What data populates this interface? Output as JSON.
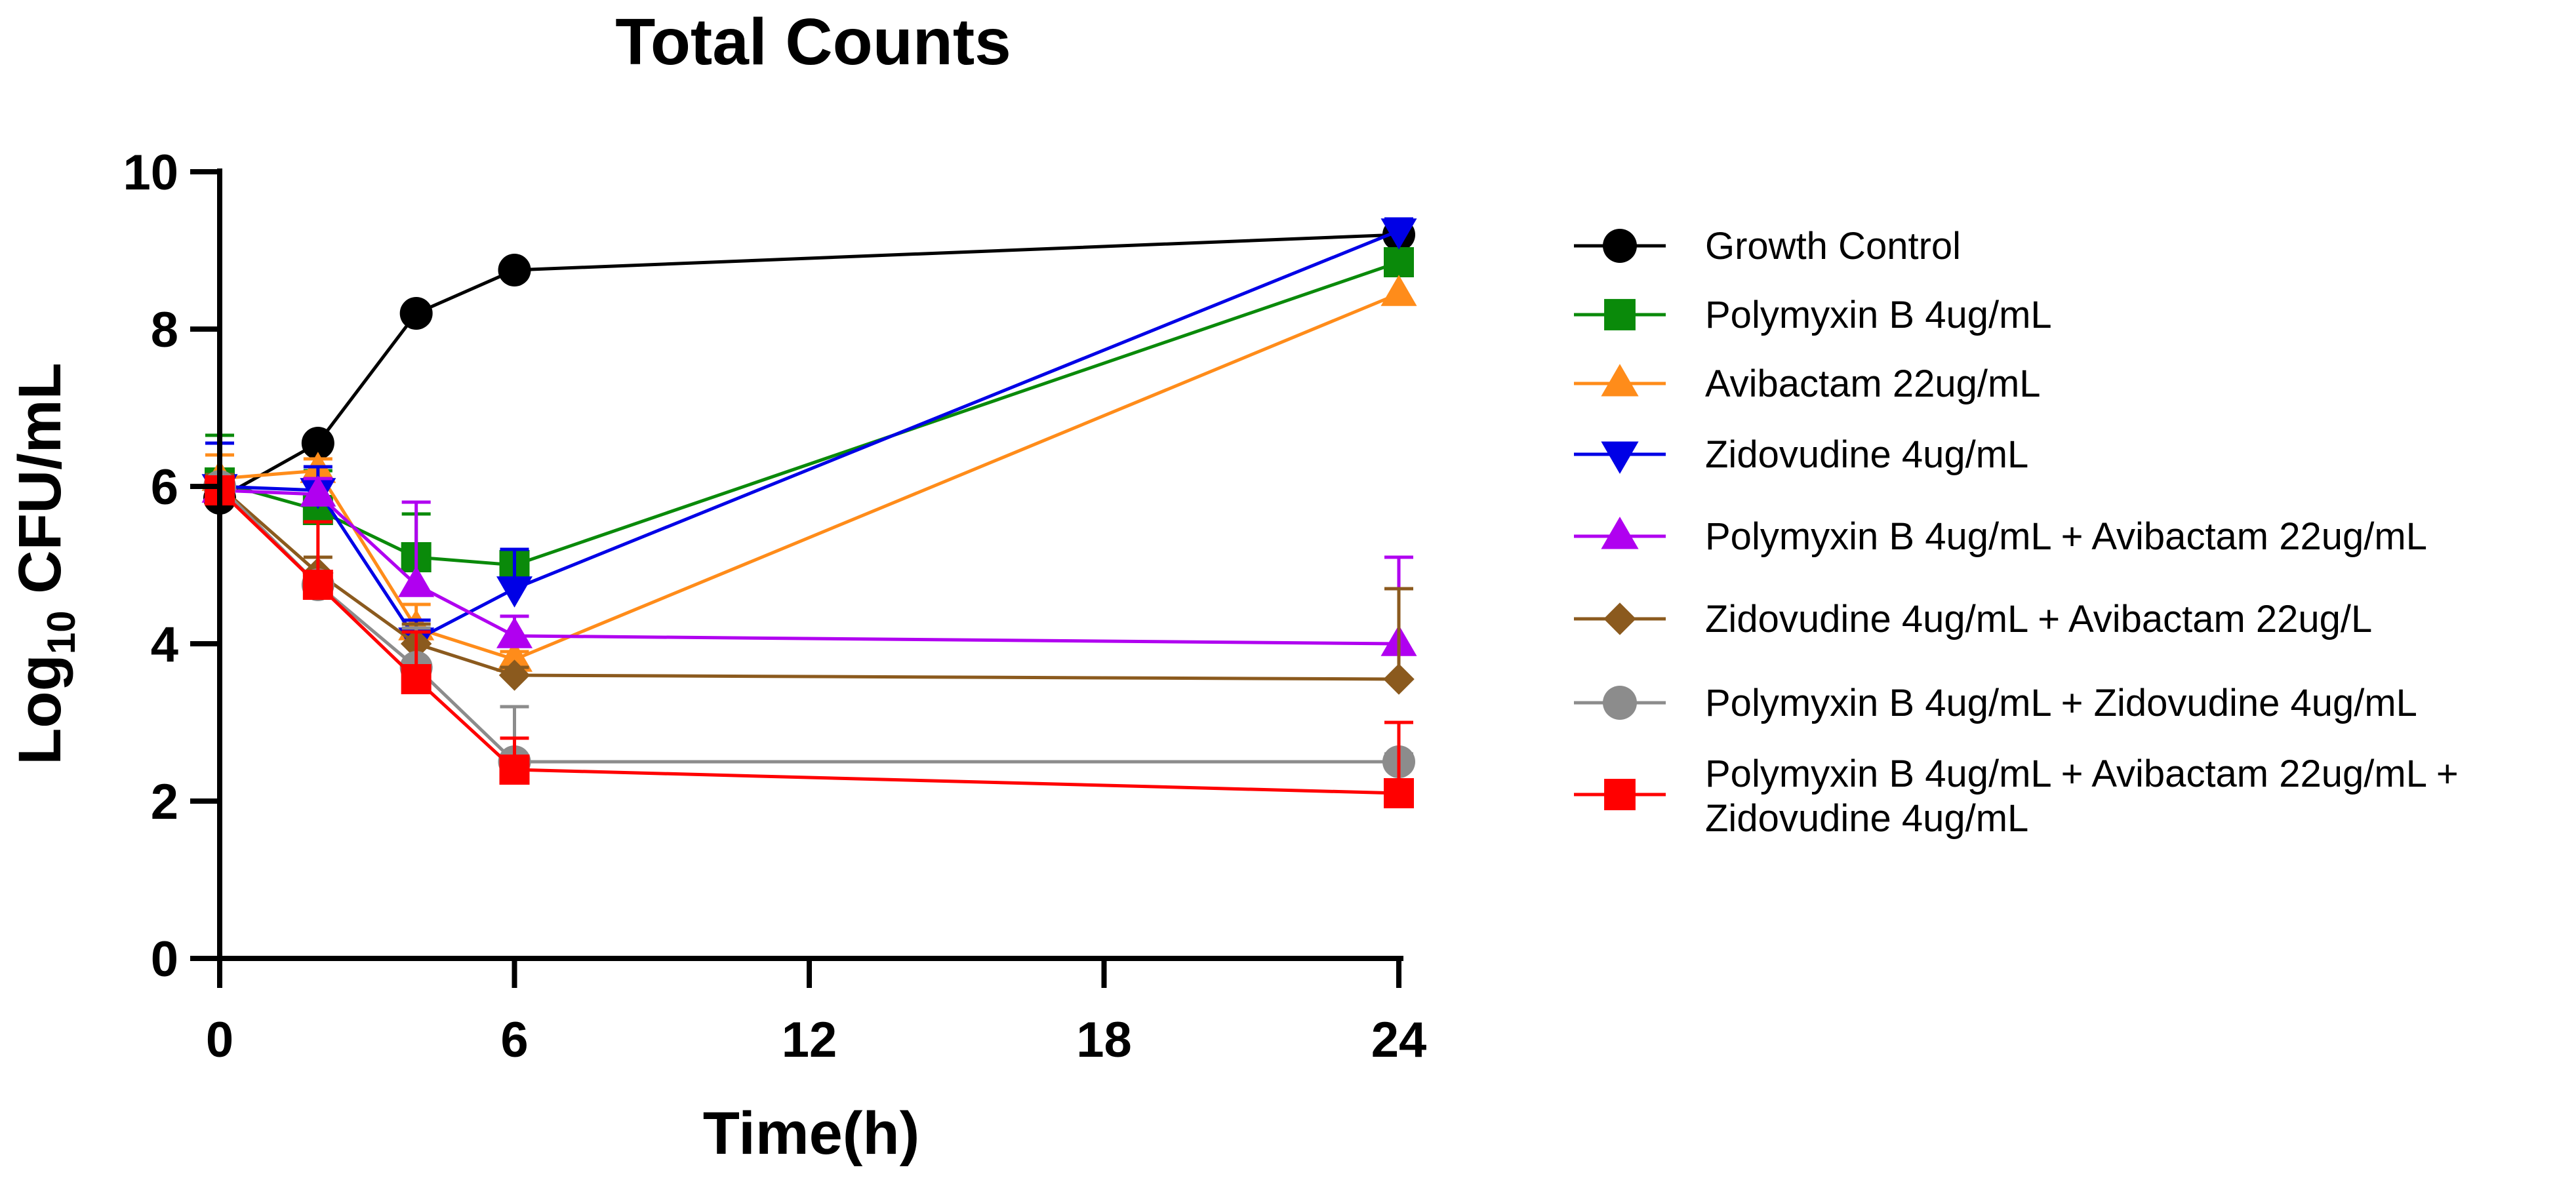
{
  "chart_data": {
    "type": "line",
    "title": "Total Counts",
    "xlabel": "Time(h)",
    "ylabel": {
      "base": "Log",
      "subscript": "10",
      "rest": " CFU/mL"
    },
    "xlim": [
      0,
      24
    ],
    "ylim": [
      0,
      10
    ],
    "xticks": [
      0,
      6,
      12,
      18,
      24
    ],
    "yticks": [
      0,
      2,
      4,
      6,
      8,
      10
    ],
    "x": [
      0,
      2,
      4,
      6,
      24
    ],
    "legend_position": "right",
    "series": [
      {
        "name": "Growth Control",
        "color": "#000000",
        "marker": "circle",
        "values": [
          5.85,
          6.55,
          8.2,
          8.75,
          9.2
        ],
        "errors": [
          0,
          0,
          0,
          0,
          0
        ]
      },
      {
        "name": "Polymyxin B 4ug/mL",
        "color": "#0a8a0a",
        "marker": "square",
        "values": [
          6.05,
          5.7,
          5.1,
          5.0,
          8.85
        ],
        "errors": [
          0.6,
          0.5,
          0.55,
          0.2,
          0
        ]
      },
      {
        "name": "Avibactam 22ug/mL",
        "color": "#ff8c1a",
        "marker": "triangle-up",
        "values": [
          6.1,
          6.2,
          4.2,
          3.8,
          8.45
        ],
        "errors": [
          0.3,
          0.15,
          0.3,
          0.1,
          0
        ]
      },
      {
        "name": "Zidovudine 4ug/mL",
        "color": "#0000e6",
        "marker": "triangle-down",
        "values": [
          6.0,
          5.95,
          4.05,
          4.7,
          9.25
        ],
        "errors": [
          0.55,
          0.3,
          0.25,
          0.5,
          0.15
        ]
      },
      {
        "name": "Polymyxin B 4ug/mL + Avibactam 22ug/mL",
        "color": "#b000f0",
        "marker": "triangle-up",
        "values": [
          5.95,
          5.9,
          4.75,
          4.1,
          4.0
        ],
        "errors": [
          0.2,
          0.2,
          1.05,
          0.25,
          1.1
        ]
      },
      {
        "name": "Zidovudine 4ug/mL + Avibactam 22ug/L",
        "color": "#8b5a1e",
        "marker": "diamond",
        "values": [
          6.0,
          4.9,
          4.0,
          3.6,
          3.55
        ],
        "errors": [
          0.15,
          0.2,
          0.25,
          0.1,
          1.15
        ]
      },
      {
        "name": "Polymyxin B 4ug/mL + Zidovudine 4ug/mL",
        "color": "#8c8c8c",
        "marker": "circle",
        "values": [
          6.0,
          4.75,
          3.7,
          2.5,
          2.5
        ],
        "errors": [
          0.1,
          0.15,
          0.5,
          0.7,
          0.1
        ]
      },
      {
        "name": "Polymyxin B 4ug/mL + Avibactam 22ug/mL + Zidovudine 4ug/mL",
        "legend_lines": [
          "Polymyxin B 4ug/mL + Avibactam 22ug/mL +",
          "Zidovudine 4ug/mL"
        ],
        "color": "#ff0000",
        "marker": "square",
        "values": [
          5.95,
          4.75,
          3.55,
          2.4,
          2.1
        ],
        "errors": [
          0.1,
          0.8,
          0.6,
          0.4,
          0.9
        ]
      }
    ]
  }
}
